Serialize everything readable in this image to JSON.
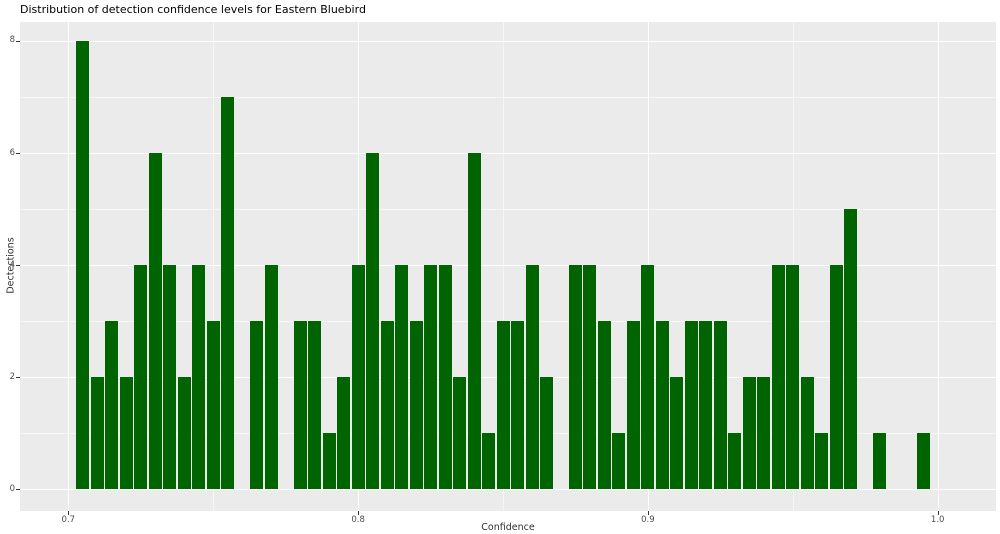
{
  "chart_data": {
    "type": "bar",
    "subtype": "histogram",
    "title": "Distribution of detection confidence levels for Eastern Bluebird",
    "xlabel": "Confidence",
    "ylabel": "Dectections",
    "legend": "none",
    "grid": "major+minor",
    "x_ticks": {
      "values": [
        0.7,
        0.8,
        0.9,
        1.0
      ],
      "labels": [
        "0.7",
        "0.8",
        "0.9",
        "1.0"
      ]
    },
    "y_ticks": {
      "values": [
        0,
        2,
        4,
        6,
        8
      ],
      "labels": [
        "0",
        "2",
        "4",
        "6",
        "8"
      ]
    },
    "xlim": [
      0.683,
      1.021
    ],
    "ylim": [
      -0.36,
      8.35
    ],
    "histogram": {
      "bin_start": 0.7025,
      "bin_width": 0.005,
      "counts": [
        8,
        2,
        3,
        2,
        4,
        6,
        4,
        2,
        4,
        3,
        7,
        0,
        3,
        4,
        0,
        3,
        3,
        1,
        2,
        4,
        6,
        3,
        4,
        3,
        4,
        4,
        2,
        6,
        1,
        3,
        3,
        4,
        2,
        0,
        4,
        4,
        3,
        1,
        3,
        4,
        3,
        2,
        3,
        3,
        3,
        1,
        2,
        2,
        4,
        4,
        2,
        1,
        4,
        5,
        0,
        1,
        0,
        0,
        1
      ]
    },
    "colors": {
      "bar": "#006400",
      "panel": "#EBEBEB",
      "grid_major": "#FFFFFF",
      "grid_minor": "#FFFFFF",
      "tick_text": "#4D4D4D",
      "axis_title": "#303030",
      "title_text": "#000000",
      "tick_mark": "#333333",
      "background": "#FFFFFF"
    }
  }
}
